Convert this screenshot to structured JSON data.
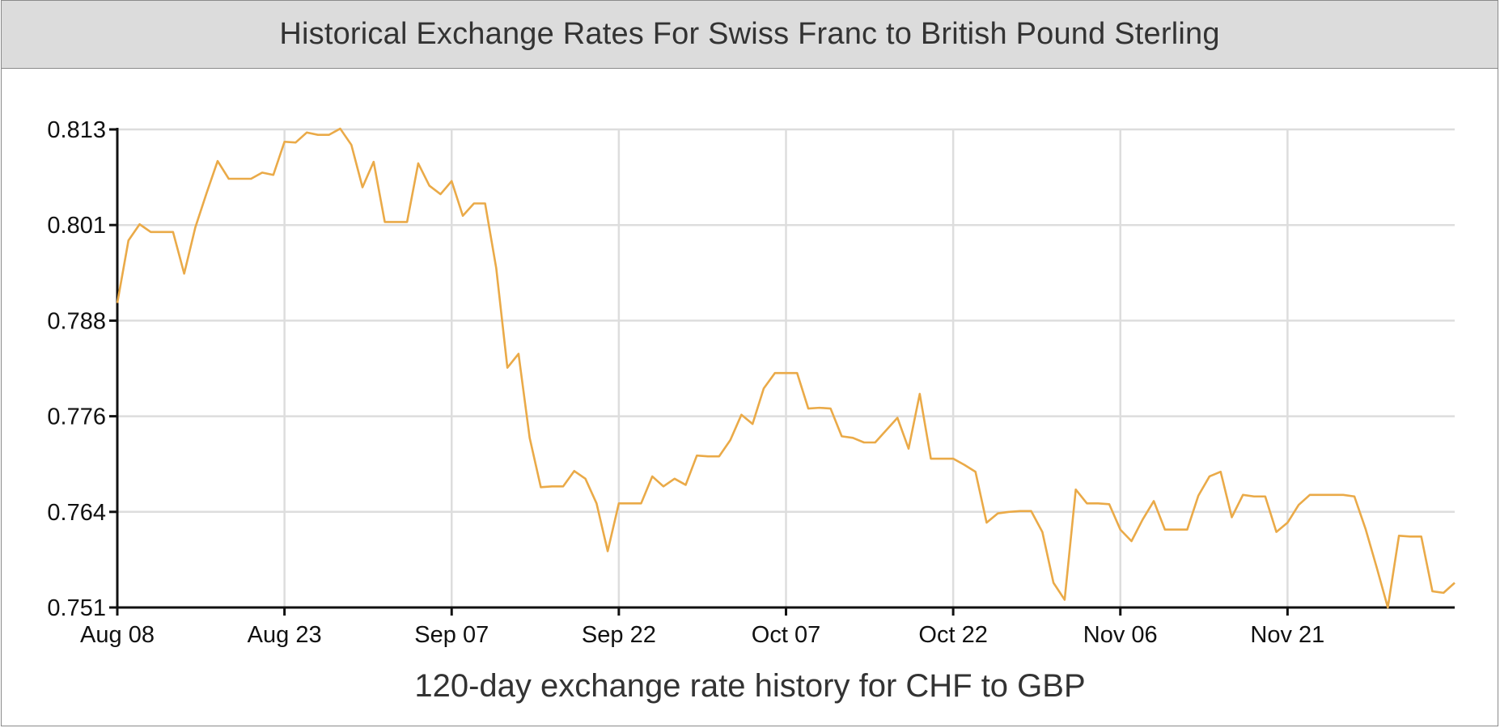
{
  "title": "Historical Exchange Rates For Swiss Franc to British Pound Sterling",
  "caption": "120-day exchange rate history for CHF to GBP",
  "chart_data": {
    "type": "line",
    "title": "Historical Exchange Rates For Swiss Franc to British Pound Sterling",
    "xlabel": "120-day exchange rate history for CHF to GBP",
    "ylabel": "",
    "x_ticks": [
      "Aug 08",
      "Aug 23",
      "Sep 07",
      "Sep 22",
      "Oct 07",
      "Oct 22",
      "Nov 06",
      "Nov 21"
    ],
    "y_ticks": [
      "0.813",
      "0.801",
      "0.788",
      "0.776",
      "0.764",
      "0.751"
    ],
    "ylim": [
      0.751,
      0.813
    ],
    "x_range_days": [
      0,
      120
    ],
    "grid": true,
    "line_color": "#eaaa48",
    "series": [
      {
        "points": [
          [
            0,
            0.7905
          ],
          [
            1,
            0.7986
          ],
          [
            2,
            0.8007
          ],
          [
            3,
            0.7997
          ],
          [
            4,
            0.7997
          ],
          [
            5,
            0.7997
          ],
          [
            6,
            0.7943
          ],
          [
            7,
            0.8003
          ],
          [
            8,
            0.8047
          ],
          [
            9,
            0.8089
          ],
          [
            10,
            0.8066
          ],
          [
            11,
            0.8066
          ],
          [
            12,
            0.8066
          ],
          [
            13,
            0.8074
          ],
          [
            14,
            0.8071
          ],
          [
            15,
            0.8114
          ],
          [
            16,
            0.8113
          ],
          [
            17,
            0.8126
          ],
          [
            18,
            0.8123
          ],
          [
            19,
            0.8123
          ],
          [
            20,
            0.8131
          ],
          [
            21,
            0.811
          ],
          [
            22,
            0.8055
          ],
          [
            23,
            0.8088
          ],
          [
            24,
            0.801
          ],
          [
            25,
            0.801
          ],
          [
            26,
            0.801
          ],
          [
            27,
            0.8086
          ],
          [
            28,
            0.8057
          ],
          [
            29,
            0.8046
          ],
          [
            30,
            0.8063
          ],
          [
            31,
            0.8018
          ],
          [
            32,
            0.8034
          ],
          [
            33,
            0.8034
          ],
          [
            34,
            0.795
          ],
          [
            35,
            0.7821
          ],
          [
            36,
            0.7839
          ],
          [
            37,
            0.773
          ],
          [
            38,
            0.7666
          ],
          [
            39,
            0.7667
          ],
          [
            40,
            0.7667
          ],
          [
            41,
            0.7687
          ],
          [
            42,
            0.7677
          ],
          [
            43,
            0.7645
          ],
          [
            44,
            0.7583
          ],
          [
            45,
            0.7645
          ],
          [
            46,
            0.7645
          ],
          [
            47,
            0.7645
          ],
          [
            48,
            0.768
          ],
          [
            49,
            0.7667
          ],
          [
            50,
            0.7677
          ],
          [
            51,
            0.7669
          ],
          [
            52,
            0.7707
          ],
          [
            53,
            0.7706
          ],
          [
            54,
            0.7706
          ],
          [
            55,
            0.7727
          ],
          [
            56,
            0.776
          ],
          [
            57,
            0.7748
          ],
          [
            58,
            0.7794
          ],
          [
            59,
            0.7814
          ],
          [
            60,
            0.7814
          ],
          [
            61,
            0.7814
          ],
          [
            62,
            0.7768
          ],
          [
            63,
            0.7769
          ],
          [
            64,
            0.7768
          ],
          [
            65,
            0.7732
          ],
          [
            66,
            0.773
          ],
          [
            67,
            0.7724
          ],
          [
            68,
            0.7724
          ],
          [
            69,
            0.774
          ],
          [
            70,
            0.7756
          ],
          [
            71,
            0.7716
          ],
          [
            72,
            0.7787
          ],
          [
            73,
            0.7703
          ],
          [
            74,
            0.7703
          ],
          [
            75,
            0.7703
          ],
          [
            76,
            0.7695
          ],
          [
            77,
            0.7686
          ],
          [
            78,
            0.762
          ],
          [
            79,
            0.7632
          ],
          [
            80,
            0.7634
          ],
          [
            81,
            0.7635
          ],
          [
            82,
            0.7635
          ],
          [
            83,
            0.7608
          ],
          [
            84,
            0.7542
          ],
          [
            85,
            0.752
          ],
          [
            86,
            0.7663
          ],
          [
            87,
            0.7645
          ],
          [
            88,
            0.7645
          ],
          [
            89,
            0.7644
          ],
          [
            90,
            0.7611
          ],
          [
            91,
            0.7596
          ],
          [
            92,
            0.7624
          ],
          [
            93,
            0.7648
          ],
          [
            94,
            0.7611
          ],
          [
            95,
            0.7611
          ],
          [
            96,
            0.7611
          ],
          [
            97,
            0.7655
          ],
          [
            98,
            0.768
          ],
          [
            99,
            0.7686
          ],
          [
            100,
            0.7627
          ],
          [
            101,
            0.7656
          ],
          [
            102,
            0.7654
          ],
          [
            103,
            0.7654
          ],
          [
            104,
            0.7608
          ],
          [
            105,
            0.762
          ],
          [
            106,
            0.7643
          ],
          [
            107,
            0.7656
          ],
          [
            108,
            0.7656
          ],
          [
            109,
            0.7656
          ],
          [
            110,
            0.7656
          ],
          [
            111,
            0.7654
          ],
          [
            112,
            0.7612
          ],
          [
            113,
            0.7562
          ],
          [
            114,
            0.751
          ],
          [
            115,
            0.7603
          ],
          [
            116,
            0.7602
          ],
          [
            117,
            0.7602
          ],
          [
            118,
            0.7531
          ],
          [
            119,
            0.7529
          ],
          [
            120,
            0.7542
          ]
        ]
      }
    ]
  }
}
